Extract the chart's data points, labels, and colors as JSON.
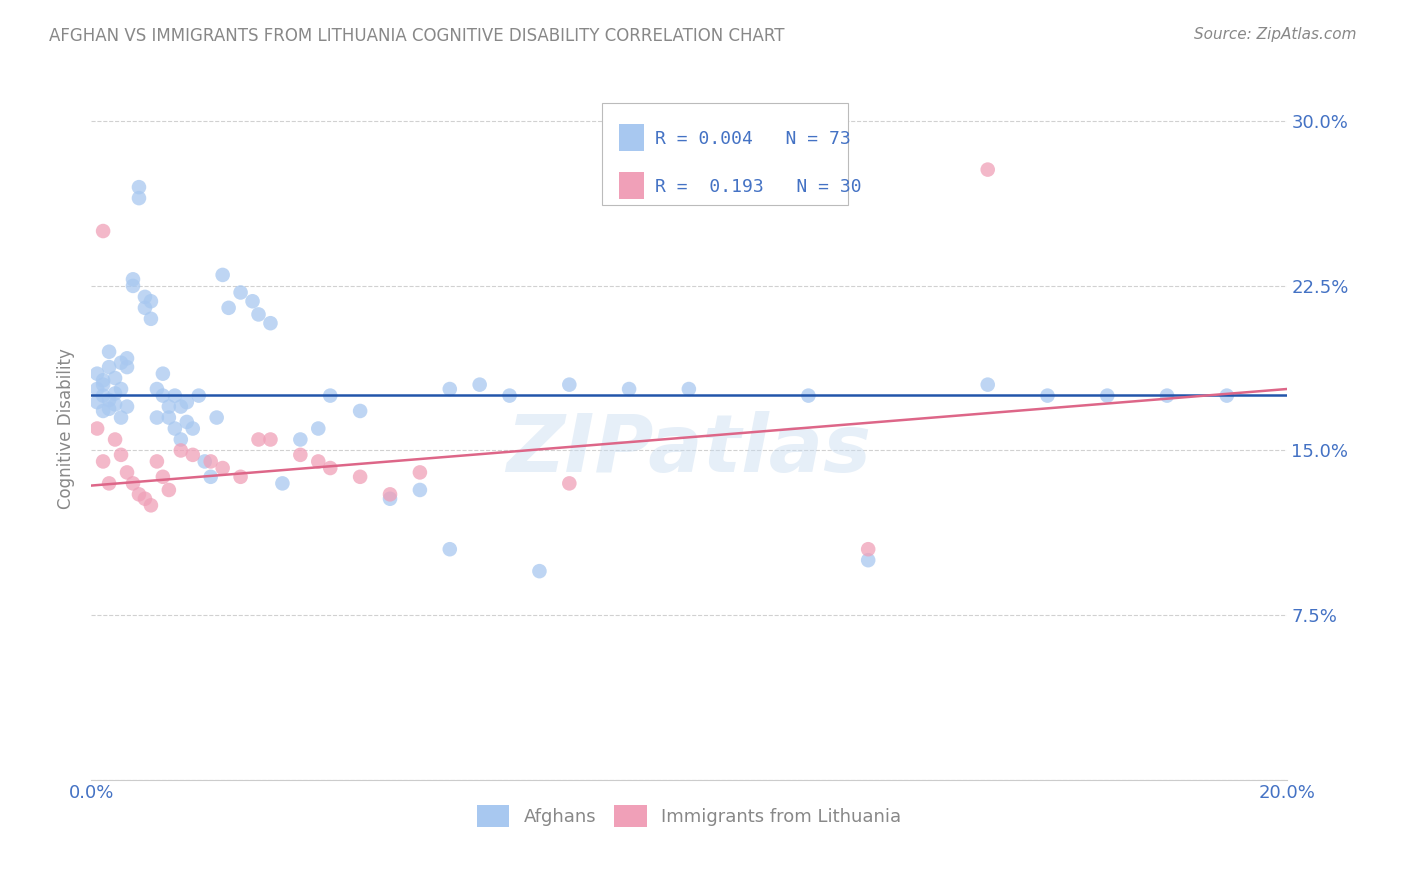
{
  "title": "AFGHAN VS IMMIGRANTS FROM LITHUANIA COGNITIVE DISABILITY CORRELATION CHART",
  "source": "Source: ZipAtlas.com",
  "ylabel": "Cognitive Disability",
  "xlim": [
    0.0,
    0.2
  ],
  "ylim": [
    0.0,
    0.32
  ],
  "yticks": [
    0.0,
    0.075,
    0.15,
    0.225,
    0.3
  ],
  "ytick_labels": [
    "",
    "7.5%",
    "15.0%",
    "22.5%",
    "30.0%"
  ],
  "xticks": [
    0.0,
    0.04,
    0.08,
    0.12,
    0.16,
    0.2
  ],
  "xtick_labels": [
    "0.0%",
    "",
    "",
    "",
    "",
    "20.0%"
  ],
  "blue_R": "0.004",
  "blue_N": "73",
  "pink_R": "0.193",
  "pink_N": "30",
  "blue_color": "#A8C8F0",
  "pink_color": "#F0A0B8",
  "blue_line_color": "#2255AA",
  "pink_line_color": "#DD6688",
  "legend_text_color": "#4472C4",
  "watermark": "ZIPatlas",
  "background_color": "#FFFFFF",
  "grid_color": "#CCCCCC",
  "title_color": "#888888",
  "source_color": "#888888",
  "blue_scatter_x": [
    0.001,
    0.001,
    0.001,
    0.002,
    0.002,
    0.002,
    0.002,
    0.003,
    0.003,
    0.003,
    0.003,
    0.004,
    0.004,
    0.004,
    0.005,
    0.005,
    0.005,
    0.006,
    0.006,
    0.006,
    0.007,
    0.007,
    0.008,
    0.008,
    0.009,
    0.009,
    0.01,
    0.01,
    0.011,
    0.011,
    0.012,
    0.012,
    0.013,
    0.013,
    0.014,
    0.014,
    0.015,
    0.015,
    0.016,
    0.016,
    0.017,
    0.018,
    0.019,
    0.02,
    0.021,
    0.022,
    0.023,
    0.025,
    0.027,
    0.028,
    0.03,
    0.032,
    0.035,
    0.038,
    0.04,
    0.045,
    0.05,
    0.055,
    0.06,
    0.065,
    0.07,
    0.08,
    0.1,
    0.12,
    0.13,
    0.15,
    0.16,
    0.17,
    0.18,
    0.19,
    0.06,
    0.075,
    0.09
  ],
  "blue_scatter_y": [
    0.178,
    0.172,
    0.185,
    0.18,
    0.168,
    0.175,
    0.182,
    0.169,
    0.173,
    0.188,
    0.195,
    0.176,
    0.171,
    0.183,
    0.19,
    0.178,
    0.165,
    0.17,
    0.188,
    0.192,
    0.225,
    0.228,
    0.27,
    0.265,
    0.215,
    0.22,
    0.21,
    0.218,
    0.178,
    0.165,
    0.175,
    0.185,
    0.165,
    0.17,
    0.175,
    0.16,
    0.155,
    0.17,
    0.163,
    0.172,
    0.16,
    0.175,
    0.145,
    0.138,
    0.165,
    0.23,
    0.215,
    0.222,
    0.218,
    0.212,
    0.208,
    0.135,
    0.155,
    0.16,
    0.175,
    0.168,
    0.128,
    0.132,
    0.178,
    0.18,
    0.175,
    0.18,
    0.178,
    0.175,
    0.1,
    0.18,
    0.175,
    0.175,
    0.175,
    0.175,
    0.105,
    0.095,
    0.178
  ],
  "pink_scatter_x": [
    0.001,
    0.002,
    0.002,
    0.003,
    0.004,
    0.005,
    0.006,
    0.007,
    0.008,
    0.009,
    0.01,
    0.011,
    0.012,
    0.013,
    0.015,
    0.017,
    0.02,
    0.022,
    0.025,
    0.028,
    0.03,
    0.035,
    0.038,
    0.04,
    0.045,
    0.05,
    0.055,
    0.08,
    0.13,
    0.15
  ],
  "pink_scatter_y": [
    0.16,
    0.25,
    0.145,
    0.135,
    0.155,
    0.148,
    0.14,
    0.135,
    0.13,
    0.128,
    0.125,
    0.145,
    0.138,
    0.132,
    0.15,
    0.148,
    0.145,
    0.142,
    0.138,
    0.155,
    0.155,
    0.148,
    0.145,
    0.142,
    0.138,
    0.13,
    0.14,
    0.135,
    0.105,
    0.278
  ],
  "blue_line_y_intercept": 0.1755,
  "blue_line_slope": 0.0,
  "pink_line_y_start": 0.134,
  "pink_line_y_end": 0.178
}
